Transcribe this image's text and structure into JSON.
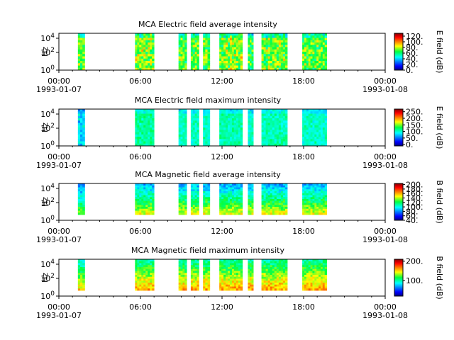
{
  "chart_data": [
    {
      "type": "heatmap",
      "title": "MCA  Electric field average intensity",
      "ylabel": "Hz",
      "ytick_labels": [
        "10^0",
        "10^2",
        "10^4"
      ],
      "xtick_labels": [
        [
          "00:00",
          "1993-01-07"
        ],
        [
          "06:00",
          ""
        ],
        [
          "12:00",
          ""
        ],
        [
          "18:00",
          ""
        ],
        [
          "00:00",
          "1993-01-08"
        ]
      ],
      "xlim": [
        "1993-01-07T00:00",
        "1993-01-08T00:00"
      ],
      "colorbar_label": "E field (dB)",
      "colorbar_ticks": [
        "0.",
        "20.",
        "40.",
        "60.",
        "80.",
        "100.",
        "120."
      ],
      "colorbar_range": [
        0,
        130
      ],
      "data_blocks_hours": [
        [
          1.4,
          1.9
        ],
        [
          5.6,
          7.0
        ],
        [
          8.8,
          9.4
        ],
        [
          9.7,
          10.3
        ],
        [
          10.6,
          11.1
        ],
        [
          11.8,
          13.5
        ],
        [
          13.9,
          14.3
        ],
        [
          14.9,
          16.8
        ],
        [
          17.9,
          19.7
        ]
      ],
      "level": [
        70,
        75,
        70,
        68,
        70,
        75,
        65,
        72,
        70
      ],
      "spread": [
        25,
        30,
        25,
        25,
        25,
        30,
        25,
        28,
        25
      ]
    },
    {
      "type": "heatmap",
      "title": "MCA  Electric field maximum intensity",
      "ylabel": "Hz",
      "ytick_labels": [
        "10^0",
        "10^2",
        "10^4"
      ],
      "xtick_labels": [
        [
          "00:00",
          "1993-01-07"
        ],
        [
          "06:00",
          ""
        ],
        [
          "12:00",
          ""
        ],
        [
          "18:00",
          ""
        ],
        [
          "00:00",
          "1993-01-08"
        ]
      ],
      "xlim": [
        "1993-01-07T00:00",
        "1993-01-08T00:00"
      ],
      "colorbar_label": "E field (dB)",
      "colorbar_ticks": [
        "0.",
        "50.",
        "100.",
        "150.",
        "200.",
        "250."
      ],
      "colorbar_range": [
        -10,
        270
      ],
      "data_blocks_hours": [
        [
          1.4,
          1.9
        ],
        [
          5.6,
          7.0
        ],
        [
          8.8,
          9.4
        ],
        [
          9.7,
          10.3
        ],
        [
          10.6,
          11.1
        ],
        [
          11.8,
          13.5
        ],
        [
          13.9,
          14.3
        ],
        [
          14.9,
          16.8
        ],
        [
          17.9,
          19.7
        ]
      ],
      "level": [
        80,
        110,
        100,
        100,
        100,
        105,
        100,
        105,
        100
      ],
      "spread": [
        40,
        25,
        25,
        25,
        25,
        25,
        25,
        25,
        25
      ]
    },
    {
      "type": "heatmap",
      "title": "MCA  Magnetic field average intensity",
      "ylabel": "Hz",
      "ytick_labels": [
        "10^0",
        "10^2",
        "10^4"
      ],
      "xtick_labels": [
        [
          "00:00",
          "1993-01-07"
        ],
        [
          "06:00",
          ""
        ],
        [
          "12:00",
          ""
        ],
        [
          "18:00",
          ""
        ],
        [
          "00:00",
          "1993-01-08"
        ]
      ],
      "xlim": [
        "1993-01-07T00:00",
        "1993-01-08T00:00"
      ],
      "colorbar_label": "B field (dB)",
      "colorbar_ticks": [
        "40.",
        "60.",
        "80.",
        "100.",
        "120.",
        "140.",
        "160.",
        "180.",
        "200."
      ],
      "colorbar_range": [
        40,
        205
      ],
      "data_blocks_hours": [
        [
          1.4,
          1.9
        ],
        [
          5.6,
          7.0
        ],
        [
          8.8,
          9.4
        ],
        [
          9.7,
          10.3
        ],
        [
          10.6,
          11.1
        ],
        [
          11.8,
          13.5
        ],
        [
          13.9,
          14.3
        ],
        [
          14.9,
          16.8
        ],
        [
          17.9,
          19.7
        ]
      ],
      "level": [
        105,
        115,
        115,
        115,
        115,
        115,
        115,
        115,
        115
      ],
      "spread": [
        20,
        25,
        25,
        25,
        25,
        25,
        25,
        25,
        25
      ]
    },
    {
      "type": "heatmap",
      "title": "MCA  Magnetic field maximum intensity",
      "ylabel": "Hz",
      "ytick_labels": [
        "10^0",
        "10^2",
        "10^4"
      ],
      "xtick_labels": [
        [
          "00:00",
          "1993-01-07"
        ],
        [
          "06:00",
          ""
        ],
        [
          "12:00",
          ""
        ],
        [
          "18:00",
          ""
        ],
        [
          "00:00",
          "1993-01-08"
        ]
      ],
      "xlim": [
        "1993-01-07T00:00",
        "1993-01-08T00:00"
      ],
      "colorbar_label": "B field (dB)",
      "colorbar_ticks": [
        "100.",
        "200."
      ],
      "colorbar_range": [
        20,
        210
      ],
      "data_blocks_hours": [
        [
          1.4,
          1.9
        ],
        [
          5.6,
          7.0
        ],
        [
          8.8,
          9.4
        ],
        [
          9.7,
          10.3
        ],
        [
          10.6,
          11.1
        ],
        [
          11.8,
          13.5
        ],
        [
          13.9,
          14.3
        ],
        [
          14.9,
          16.8
        ],
        [
          17.9,
          19.7
        ]
      ],
      "level": [
        120,
        130,
        130,
        130,
        130,
        130,
        130,
        130,
        130
      ],
      "spread": [
        25,
        30,
        30,
        30,
        30,
        30,
        30,
        30,
        30
      ]
    }
  ]
}
